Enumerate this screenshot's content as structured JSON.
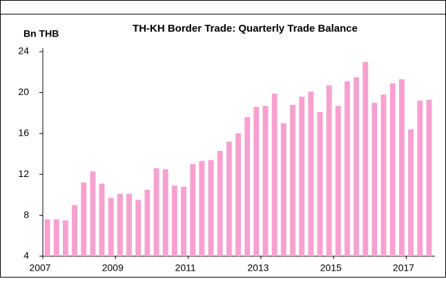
{
  "chart_data": {
    "type": "bar",
    "title": "TH-KH Border Trade: Quarterly Trade Balance",
    "y_label": "Bn THB",
    "categories": [
      "2007",
      null,
      null,
      null,
      null,
      null,
      null,
      null,
      "2009",
      null,
      null,
      null,
      null,
      null,
      null,
      null,
      "2011",
      null,
      null,
      null,
      null,
      null,
      null,
      null,
      "2013",
      null,
      null,
      null,
      null,
      null,
      null,
      null,
      "2015",
      null,
      null,
      null,
      null,
      null,
      null,
      null,
      "2017",
      null,
      null
    ],
    "values": [
      7.6,
      7.6,
      7.5,
      9.0,
      11.2,
      12.3,
      11.1,
      9.7,
      10.1,
      10.1,
      9.5,
      10.5,
      12.6,
      12.5,
      10.9,
      10.8,
      13.0,
      13.3,
      13.4,
      14.3,
      15.2,
      16.0,
      17.6,
      18.6,
      18.7,
      19.9,
      17.0,
      18.8,
      19.6,
      20.1,
      18.1,
      20.7,
      18.7,
      21.1,
      21.5,
      23.0,
      19.0,
      19.8,
      20.9,
      21.3,
      16.4,
      19.2,
      19.3
    ],
    "color": "#f7a1d0",
    "ylim": [
      4,
      24
    ],
    "yticks": [
      4,
      8,
      12,
      16,
      20,
      24
    ],
    "grid": false
  }
}
